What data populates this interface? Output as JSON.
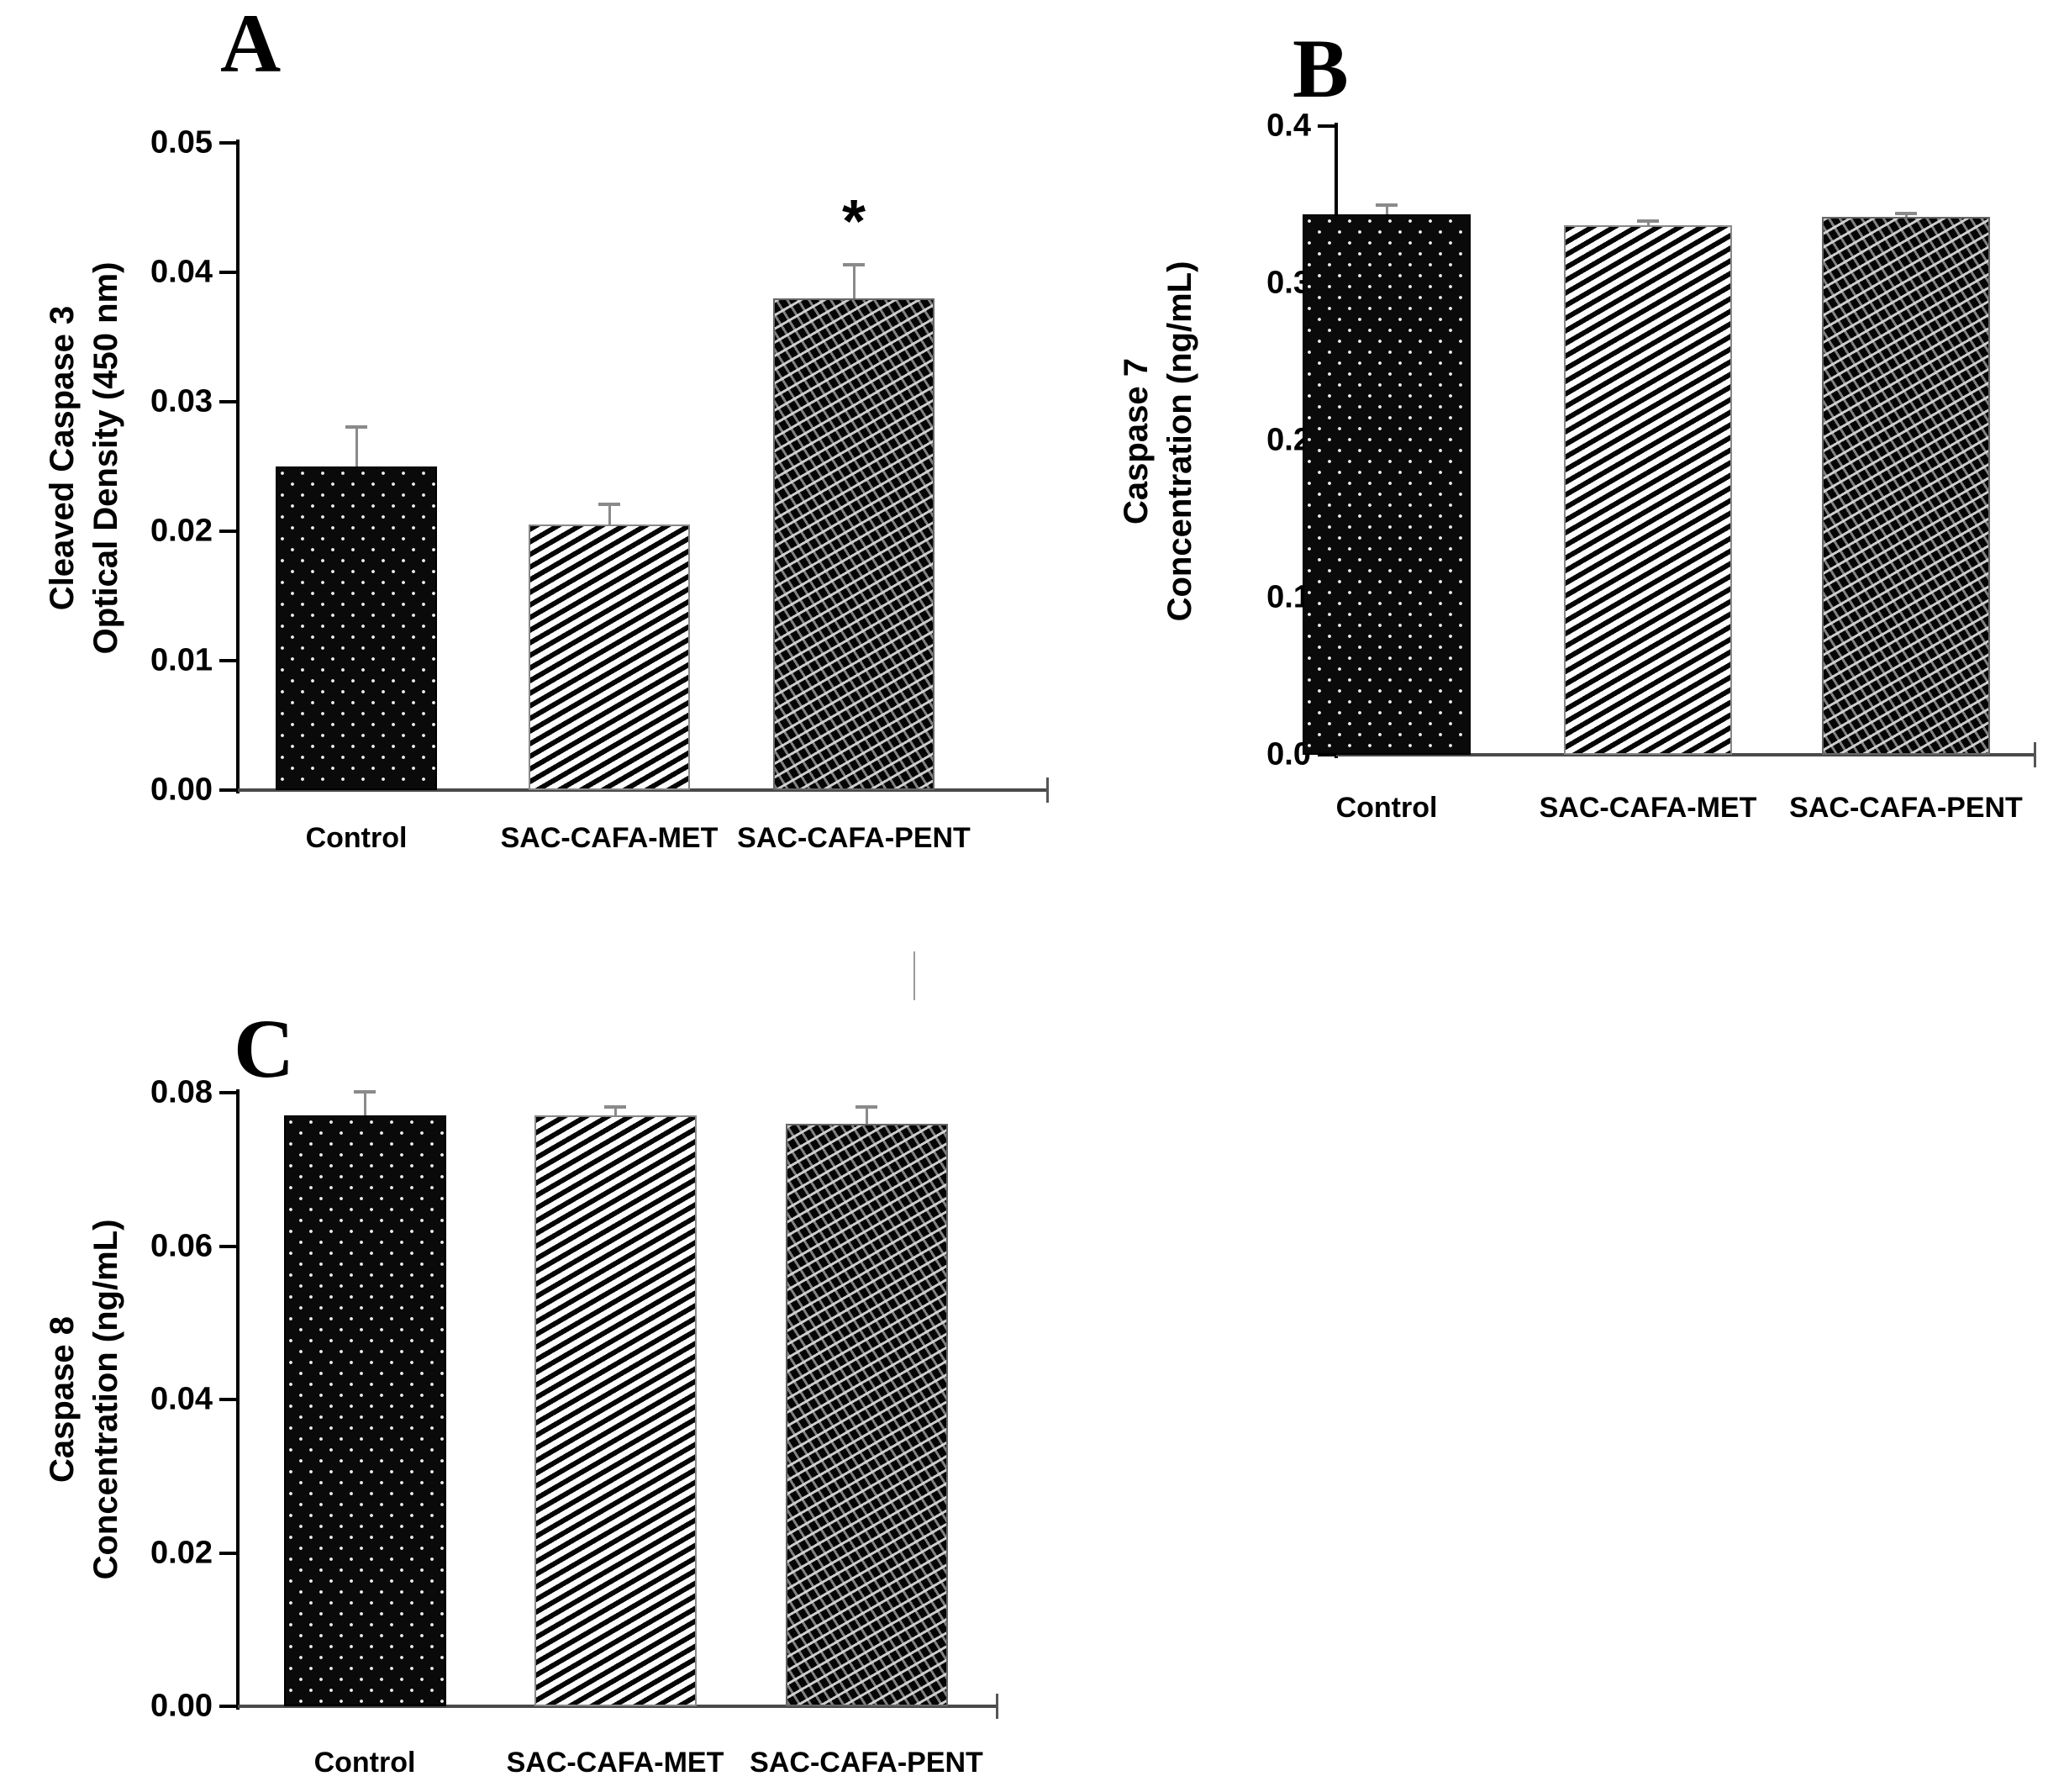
{
  "figure_title": "",
  "chart_data": [
    {
      "type": "bar",
      "panel_label": "A",
      "ylabel": "Cleaved Caspase 3 Optical Density (450 nm)",
      "ylabel_lines": [
        "Cleaved Caspase 3",
        "Optical Density (450 nm)"
      ],
      "xlabel": "",
      "categories": [
        "Control",
        "SAC-CAFA-MET",
        "SAC-CAFA-PENT"
      ],
      "values": [
        0.025,
        0.0205,
        0.038
      ],
      "errors_plus": [
        0.003,
        0.0015,
        0.0025
      ],
      "annotations": [
        "",
        "",
        "*"
      ],
      "ylim": [
        0,
        0.05
      ],
      "yticks": [
        "0.00",
        "0.01",
        "0.02",
        "0.03",
        "0.04",
        "0.05"
      ],
      "grid": false,
      "legend": null,
      "series_patterns": [
        "black-with-white-dots",
        "white-with-black-diagonal-stripes",
        "black-with-gray-diagonal-lattice"
      ],
      "bar_colors": [
        "#000000",
        "#ffffff",
        "#000000"
      ]
    },
    {
      "type": "bar",
      "panel_label": "B",
      "ylabel": "Caspase 7 Concentration (ng/mL)",
      "ylabel_lines": [
        "Caspase 7",
        "Concentration (ng/mL)"
      ],
      "xlabel": "",
      "categories": [
        "Control",
        "SAC-CAFA-MET",
        "SAC-CAFA-PENT"
      ],
      "values": [
        0.344,
        0.337,
        0.342
      ],
      "errors_plus": [
        0.005,
        0.002,
        0.002
      ],
      "annotations": [
        "",
        "",
        ""
      ],
      "ylim": [
        0,
        0.4
      ],
      "yticks": [
        "0.0",
        "0.1",
        "0.2",
        "0.3",
        "0.4"
      ],
      "grid": false,
      "legend": null,
      "series_patterns": [
        "black-with-white-dots",
        "white-with-black-diagonal-stripes",
        "black-with-gray-diagonal-lattice"
      ],
      "bar_colors": [
        "#000000",
        "#ffffff",
        "#000000"
      ]
    },
    {
      "type": "bar",
      "panel_label": "C",
      "ylabel": "Caspase 8 Concentration (ng/mL)",
      "ylabel_lines": [
        "Caspase 8",
        "Concentration (ng/mL)"
      ],
      "xlabel": "",
      "categories": [
        "Control",
        "SAC-CAFA-MET",
        "SAC-CAFA-PENT"
      ],
      "values": [
        0.077,
        0.077,
        0.076
      ],
      "errors_plus": [
        0.003,
        0.001,
        0.002
      ],
      "annotations": [
        "",
        "",
        ""
      ],
      "ylim": [
        0,
        0.08
      ],
      "yticks": [
        "0.00",
        "0.02",
        "0.04",
        "0.06",
        "0.08"
      ],
      "grid": false,
      "legend": null,
      "series_patterns": [
        "black-with-white-dots",
        "white-with-black-diagonal-stripes",
        "black-with-gray-diagonal-lattice"
      ],
      "bar_colors": [
        "#000000",
        "#ffffff",
        "#000000"
      ]
    }
  ]
}
